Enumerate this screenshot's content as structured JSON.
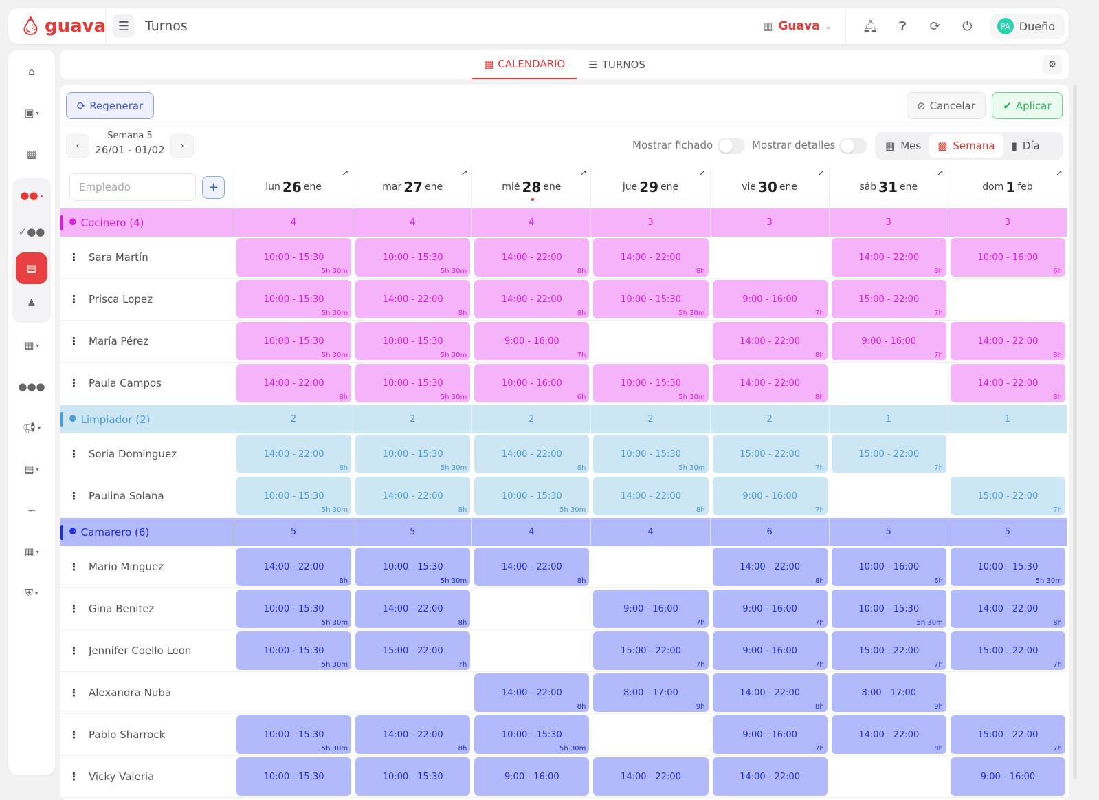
{
  "app": {
    "logo": "guava",
    "title": "Turnos"
  },
  "topbar": {
    "org": "Guava",
    "user_initials": "PA",
    "user_role": "Dueño"
  },
  "sidebar": {
    "items": [
      "home",
      "payroll",
      "calendar",
      "team",
      "team-check",
      "shifts",
      "worker",
      "building",
      "people",
      "megaphone",
      "archive",
      "analytics",
      "store",
      "security"
    ],
    "active": "shifts"
  },
  "tabs": [
    {
      "label": "CALENDARIO",
      "icon": "calendar-icon",
      "active": true
    },
    {
      "label": "TURNOS",
      "icon": "list-icon",
      "active": false
    }
  ],
  "toolbar": {
    "regenerate": "Regenerar",
    "cancel": "Cancelar",
    "apply": "Aplicar",
    "week_label": "Semana 5",
    "week_range": "26/01 - 01/02",
    "show_clocked": "Mostrar fichado",
    "show_details": "Mostrar detalles",
    "view_month": "Mes",
    "view_week": "Semana",
    "view_day": "Día",
    "active_view": "Semana",
    "employee_placeholder": "Empleado"
  },
  "days": [
    {
      "dow": "lun",
      "num": "26",
      "mon": "ene"
    },
    {
      "dow": "mar",
      "num": "27",
      "mon": "ene"
    },
    {
      "dow": "mié",
      "num": "28",
      "mon": "ene",
      "today": true
    },
    {
      "dow": "jue",
      "num": "29",
      "mon": "ene"
    },
    {
      "dow": "vie",
      "num": "30",
      "mon": "ene"
    },
    {
      "dow": "sáb",
      "num": "31",
      "mon": "ene"
    },
    {
      "dow": "dom",
      "num": "1",
      "mon": "feb"
    }
  ],
  "groups": [
    {
      "name": "Cocinero (4)",
      "bg": "#f5b3fa",
      "color": "#d61ee3",
      "counts": [
        "4",
        "4",
        "4",
        "3",
        "3",
        "3",
        "3"
      ],
      "employees": [
        {
          "name": "Sara Martín",
          "shifts": [
            [
              "10:00 - 15:30",
              "5h 30m"
            ],
            [
              "10:00 - 15:30",
              "5h 30m"
            ],
            [
              "14:00 - 22:00",
              "8h"
            ],
            [
              "14:00 - 22:00",
              "8h"
            ],
            null,
            [
              "14:00 - 22:00",
              "8h"
            ],
            [
              "10:00 - 16:00",
              "6h"
            ]
          ]
        },
        {
          "name": "Prisca Lopez",
          "shifts": [
            [
              "10:00 - 15:30",
              "5h 30m"
            ],
            [
              "14:00 - 22:00",
              "8h"
            ],
            [
              "14:00 - 22:00",
              "8h"
            ],
            [
              "10:00 - 15:30",
              "5h 30m"
            ],
            [
              "9:00 - 16:00",
              "7h"
            ],
            [
              "15:00 - 22:00",
              "7h"
            ],
            null
          ]
        },
        {
          "name": "María Pérez",
          "shifts": [
            [
              "10:00 - 15:30",
              "5h 30m"
            ],
            [
              "10:00 - 15:30",
              "5h 30m"
            ],
            [
              "9:00 - 16:00",
              "7h"
            ],
            null,
            [
              "14:00 - 22:00",
              "8h"
            ],
            [
              "9:00 - 16:00",
              "7h"
            ],
            [
              "14:00 - 22:00",
              "8h"
            ]
          ]
        },
        {
          "name": "Paula Campos",
          "shifts": [
            [
              "14:00 - 22:00",
              "8h"
            ],
            [
              "10:00 - 15:30",
              "5h 30m"
            ],
            [
              "10:00 - 16:00",
              "6h"
            ],
            [
              "10:00 - 15:30",
              "5h 30m"
            ],
            [
              "14:00 - 22:00",
              "8h"
            ],
            null,
            [
              "14:00 - 22:00",
              "8h"
            ]
          ]
        }
      ]
    },
    {
      "name": "Limpiador (2)",
      "bg": "#cde6f3",
      "color": "#4a9dd6",
      "counts": [
        "2",
        "2",
        "2",
        "2",
        "2",
        "1",
        "1"
      ],
      "employees": [
        {
          "name": "Soria Dominguez",
          "shifts": [
            [
              "14:00 - 22:00",
              "8h"
            ],
            [
              "10:00 - 15:30",
              "5h 30m"
            ],
            [
              "14:00 - 22:00",
              "8h"
            ],
            [
              "10:00 - 15:30",
              "5h 30m"
            ],
            [
              "15:00 - 22:00",
              "7h"
            ],
            [
              "15:00 - 22:00",
              "7h"
            ],
            null
          ]
        },
        {
          "name": "Paulina Solana",
          "shifts": [
            [
              "10:00 - 15:30",
              "5h 30m"
            ],
            [
              "14:00 - 22:00",
              "8h"
            ],
            [
              "10:00 - 15:30",
              "5h 30m"
            ],
            [
              "14:00 - 22:00",
              "8h"
            ],
            [
              "9:00 - 16:00",
              "7h"
            ],
            null,
            [
              "15:00 - 22:00",
              "7h"
            ]
          ]
        }
      ]
    },
    {
      "name": "Camarero (6)",
      "bg": "#b3bafc",
      "color": "#1d2de0",
      "counts": [
        "5",
        "5",
        "4",
        "4",
        "6",
        "5",
        "5"
      ],
      "employees": [
        {
          "name": "Mario Minguez",
          "shifts": [
            [
              "14:00 - 22:00",
              "8h"
            ],
            [
              "10:00 - 15:30",
              "5h 30m"
            ],
            [
              "14:00 - 22:00",
              "8h"
            ],
            null,
            [
              "14:00 - 22:00",
              "8h"
            ],
            [
              "10:00 - 16:00",
              "6h"
            ],
            [
              "10:00 - 15:30",
              "5h 30m"
            ]
          ]
        },
        {
          "name": "Gina Benitez",
          "shifts": [
            [
              "10:00 - 15:30",
              "5h 30m"
            ],
            [
              "14:00 - 22:00",
              "8h"
            ],
            null,
            [
              "9:00 - 16:00",
              "7h"
            ],
            [
              "9:00 - 16:00",
              "7h"
            ],
            [
              "10:00 - 15:30",
              "5h 30m"
            ],
            [
              "14:00 - 22:00",
              "8h"
            ]
          ]
        },
        {
          "name": "Jennifer Coello Leon",
          "shifts": [
            [
              "10:00 - 15:30",
              "5h 30m"
            ],
            [
              "15:00 - 22:00",
              "7h"
            ],
            null,
            [
              "15:00 - 22:00",
              "7h"
            ],
            [
              "9:00 - 16:00",
              "7h"
            ],
            [
              "15:00 - 22:00",
              "7h"
            ],
            [
              "15:00 - 22:00",
              "7h"
            ]
          ]
        },
        {
          "name": "Alexandra Nuba",
          "shifts": [
            null,
            null,
            [
              "14:00 - 22:00",
              "8h"
            ],
            [
              "8:00 - 17:00",
              "9h"
            ],
            [
              "14:00 - 22:00",
              "8h"
            ],
            [
              "8:00 - 17:00",
              "9h"
            ],
            null
          ]
        },
        {
          "name": "Pablo Sharrock",
          "shifts": [
            [
              "10:00 - 15:30",
              "5h 30m"
            ],
            [
              "14:00 - 22:00",
              "8h"
            ],
            [
              "10:00 - 15:30",
              "5h 30m"
            ],
            null,
            [
              "9:00 - 16:00",
              "7h"
            ],
            [
              "14:00 - 22:00",
              "8h"
            ],
            [
              "15:00 - 22:00",
              "7h"
            ]
          ]
        },
        {
          "name": "Vicky Valeria",
          "shifts": [
            [
              "10:00 - 15:30"
            ],
            [
              "10:00 - 15:30"
            ],
            [
              "9:00 - 16:00"
            ],
            [
              "14:00 - 22:00"
            ],
            [
              "14:00 - 22:00"
            ],
            null,
            [
              "9:00 - 16:00"
            ]
          ]
        }
      ]
    }
  ]
}
